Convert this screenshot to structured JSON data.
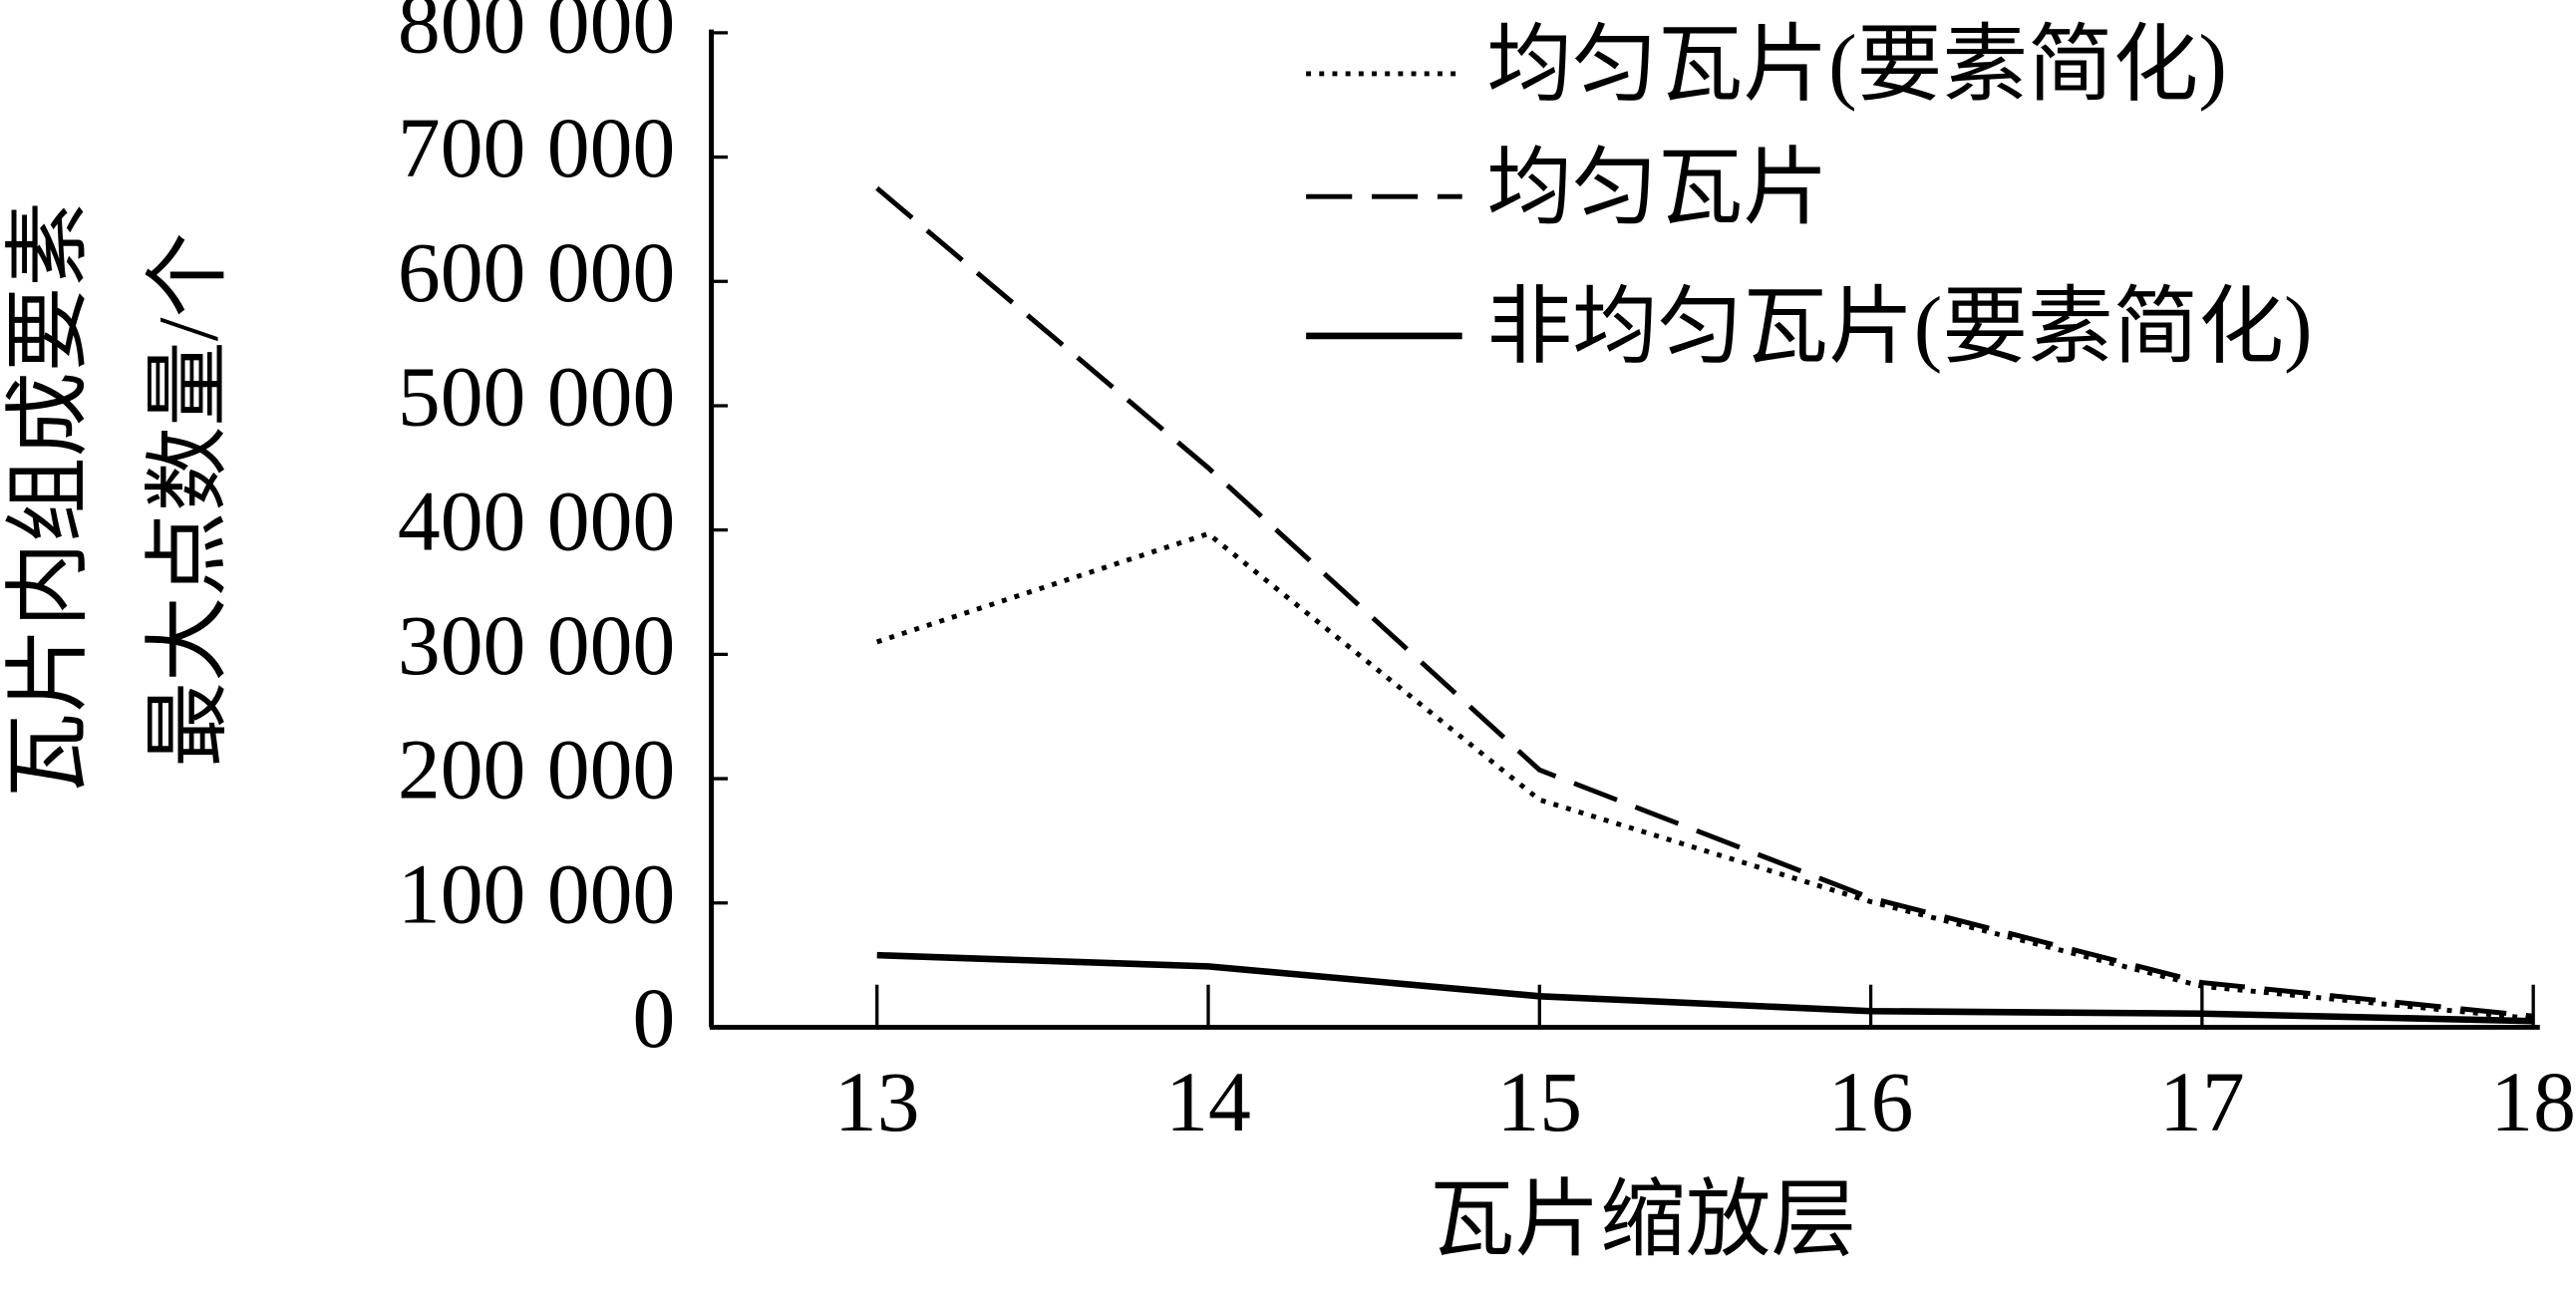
{
  "chart_data": {
    "type": "line",
    "x_label": "瓦片缩放层",
    "y_label": [
      "瓦片内组成要素",
      "最大点数量/个"
    ],
    "x": [
      13,
      14,
      15,
      16,
      17,
      18
    ],
    "xlim": [
      12.5,
      18
    ],
    "xticks": [
      13,
      14,
      15,
      16,
      17,
      18
    ],
    "ylim": [
      0,
      800000
    ],
    "yticks": [
      0,
      {
        "value": 100000,
        "label": "100 000"
      },
      {
        "value": 200000,
        "label": "200 000"
      },
      {
        "value": 300000,
        "label": "300 000"
      },
      {
        "value": 400000,
        "label": "400 000"
      },
      {
        "value": 500000,
        "label": "500 000"
      },
      {
        "value": 600000,
        "label": "600 000"
      },
      {
        "value": 700000,
        "label": "700 000"
      },
      {
        "value": 800000,
        "label": "800 000"
      }
    ],
    "legend": "upper right",
    "series": [
      {
        "name": "均匀瓦片(要素简化)",
        "color": "#000000",
        "dash": "dotted",
        "values": [
          310000,
          397000,
          183000,
          101000,
          33000,
          7000
        ]
      },
      {
        "name": "均匀瓦片",
        "color": "#000000",
        "dash": "dashed",
        "values": [
          675000,
          450000,
          207000,
          104000,
          36000,
          9000
        ]
      },
      {
        "name": "非均匀瓦片(要素简化)",
        "color": "#000000",
        "dash": "solid",
        "values": [
          58000,
          49000,
          25000,
          13000,
          11000,
          5000
        ]
      }
    ]
  }
}
